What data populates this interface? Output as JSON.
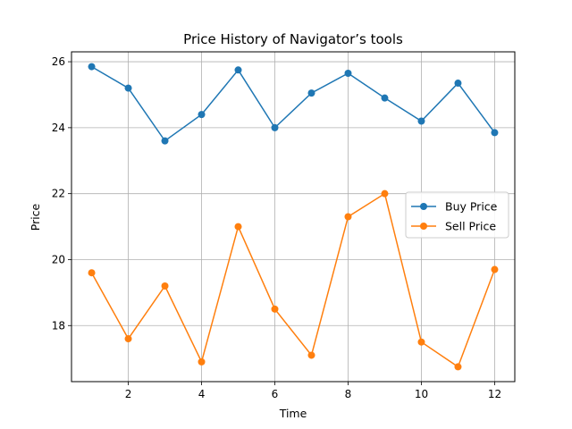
{
  "chart_data": {
    "type": "line",
    "title": "Price History of Navigator’s tools",
    "xlabel": "Time",
    "ylabel": "Price",
    "x": [
      1,
      2,
      3,
      4,
      5,
      6,
      7,
      8,
      9,
      10,
      11,
      12
    ],
    "xlim": [
      0.45,
      12.55
    ],
    "ylim": [
      16.3,
      26.3
    ],
    "xticks": [
      2,
      4,
      6,
      8,
      10,
      12
    ],
    "yticks": [
      18,
      20,
      22,
      24,
      26
    ],
    "grid": true,
    "legend_position": "center-right",
    "series": [
      {
        "name": "Buy Price",
        "color": "#1f77b4",
        "marker": "circle",
        "values": [
          25.85,
          25.2,
          23.6,
          24.4,
          25.75,
          24.0,
          25.05,
          25.65,
          24.9,
          24.2,
          25.35,
          23.85
        ]
      },
      {
        "name": "Sell Price",
        "color": "#ff7f0e",
        "marker": "circle",
        "values": [
          19.6,
          17.6,
          19.2,
          16.9,
          21.0,
          18.5,
          17.1,
          21.3,
          22.0,
          17.5,
          16.75,
          19.7
        ]
      }
    ]
  }
}
